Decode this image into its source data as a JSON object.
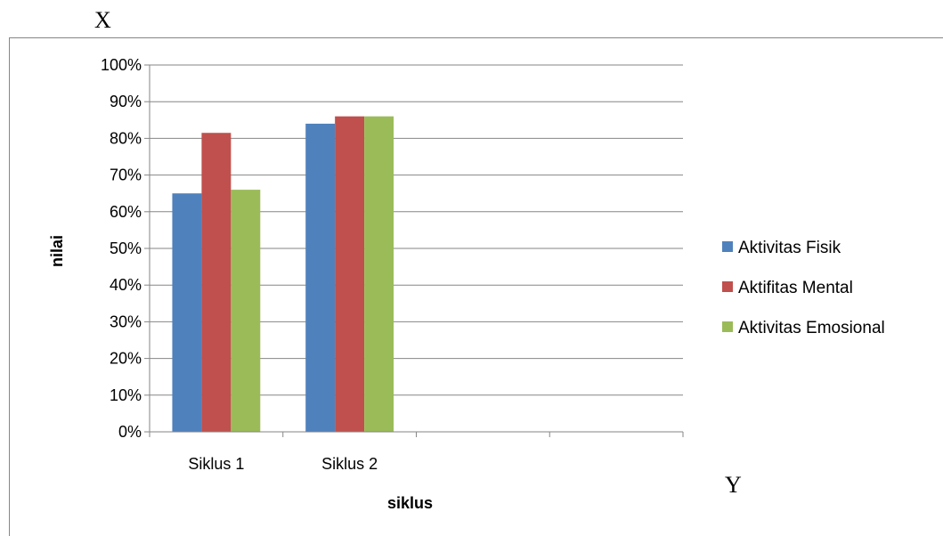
{
  "corner_labels": {
    "top_left": "X",
    "bottom_right": "Y"
  },
  "chart_data": {
    "type": "bar",
    "categories": [
      "Siklus 1",
      "Siklus 2",
      "",
      ""
    ],
    "series": [
      {
        "name": "Aktivitas Fisik",
        "values": [
          65,
          84,
          null,
          null
        ],
        "color": "#4F81BD"
      },
      {
        "name": "Aktifitas Mental",
        "values": [
          81.5,
          86,
          null,
          null
        ],
        "color": "#C0504D"
      },
      {
        "name": "Aktivitas Emosional",
        "values": [
          66,
          86,
          null,
          null
        ],
        "color": "#9BBB59"
      }
    ],
    "xlabel": "siklus",
    "ylabel": "nilai",
    "ylim": [
      0,
      100
    ],
    "yticks": [
      "0%",
      "10%",
      "20%",
      "30%",
      "40%",
      "50%",
      "60%",
      "70%",
      "80%",
      "90%",
      "100%"
    ],
    "grid": true,
    "legend_position": "right"
  }
}
